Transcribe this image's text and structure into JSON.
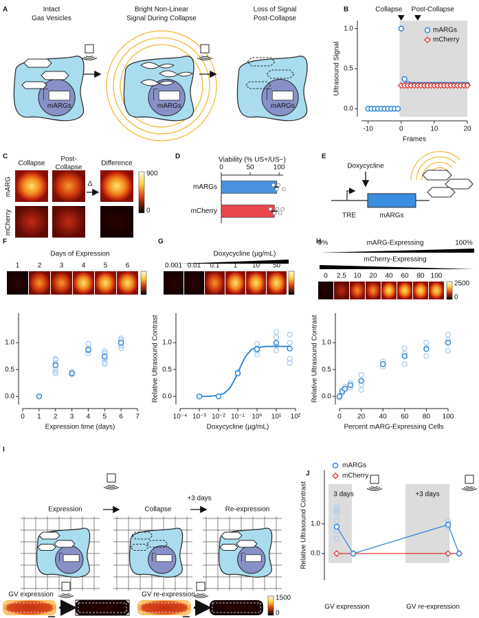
{
  "panel_labels": [
    "A",
    "B",
    "C",
    "D",
    "E",
    "F",
    "G",
    "H",
    "I",
    "J"
  ],
  "panel_a": {
    "steps": [
      [
        "Intact",
        "Gas Vesicles"
      ],
      [
        "Bright Non-Linear",
        "Signal During Collapse"
      ],
      [
        "Loss of Signal",
        "Post-Collapse"
      ]
    ],
    "gene": "mARGs"
  },
  "panel_c": {
    "columns": [
      [
        "Collapse"
      ],
      [
        "Post-",
        "Collapse"
      ],
      [
        "Difference"
      ]
    ],
    "rows": [
      "mARG",
      "mCherry"
    ],
    "operator": "Δ",
    "colorbar": [
      900,
      0
    ]
  },
  "panel_e": {
    "drug": "Doxycycline",
    "promoter": "TRE",
    "gene": "mARGs"
  },
  "panel_i": {
    "steps": [
      "Expression",
      "Collapse",
      "Re-expression"
    ],
    "interval": "+3 days",
    "images": [
      "GV expression",
      "GV re-expression"
    ],
    "colorbar": [
      1500,
      0
    ]
  },
  "chart_data": [
    {
      "type": "scatter",
      "annotations": [
        "Collapse",
        "Post-Collapse"
      ],
      "x_label": "Frames",
      "y_label": "Ultrasound Signal",
      "x": [
        -10,
        -9,
        -8,
        -7,
        -6,
        -5,
        -4,
        -3,
        -2,
        -1,
        0,
        1,
        2,
        3,
        4,
        5,
        6,
        7,
        8,
        9,
        10,
        11,
        12,
        13,
        14,
        15,
        16,
        17,
        18,
        19,
        20
      ],
      "series": [
        {
          "name": "mARGs",
          "color": "#2f86d8",
          "marker": "circle",
          "values": [
            0,
            0,
            0,
            0,
            0,
            0,
            0,
            0,
            0,
            0,
            1.0,
            0.37,
            0.31,
            0.3,
            0.3,
            0.3,
            0.3,
            0.3,
            0.3,
            0.3,
            0.3,
            0.3,
            0.3,
            0.3,
            0.3,
            0.3,
            0.3,
            0.3,
            0.3,
            0.3,
            0.3
          ]
        },
        {
          "name": "mCherry",
          "color": "#e0312f",
          "marker": "diamond",
          "values": [
            null,
            null,
            null,
            null,
            null,
            null,
            null,
            null,
            null,
            null,
            0.29,
            0.29,
            0.29,
            0.29,
            0.29,
            0.29,
            0.29,
            0.29,
            0.29,
            0.29,
            0.29,
            0.29,
            0.29,
            0.29,
            0.29,
            0.29,
            0.29,
            0.29,
            0.29,
            0.29,
            0.29
          ]
        }
      ],
      "xlim": [
        -12,
        20
      ],
      "xticks": [
        -10,
        0,
        10,
        20
      ],
      "ylim": [
        -0.1,
        1.1
      ],
      "yticks": [
        {
          "value": 0,
          "label": "0.0"
        },
        {
          "value": 0.5,
          "label": "0.5"
        },
        {
          "value": 1,
          "label": "1.0"
        }
      ],
      "legend": "upper right"
    },
    {
      "type": "bar",
      "orientation": "horizontal",
      "title": "Viability (% US+/US−)",
      "categories": [
        "mARGs",
        "mCherry"
      ],
      "values": [
        96,
        92
      ],
      "errors": [
        4,
        6
      ],
      "colors": [
        "#4a92e0",
        "#e8474b"
      ],
      "points": [
        [
          90,
          96,
          99,
          108
        ],
        [
          85,
          92,
          97,
          102,
          106
        ]
      ],
      "xlim": [
        0,
        107
      ],
      "xticks": [
        0,
        50,
        100
      ]
    },
    {
      "type": "scatter",
      "title": "Days of Expression",
      "image_labels": [
        1,
        2,
        3,
        4,
        5,
        6
      ],
      "x_label": "Expression time (days)",
      "y_label": "Relative Ultrasound Contrast",
      "x": [
        1,
        2,
        3,
        4,
        5,
        6
      ],
      "values": [
        0,
        0.58,
        0.43,
        0.87,
        0.74,
        1.0
      ],
      "color": "#2f86d8",
      "replicates": {
        "color": "#a9cdf1",
        "x": [
          1,
          1,
          1,
          2,
          2,
          2,
          2,
          2,
          2,
          3,
          3,
          3,
          4,
          4,
          4,
          4,
          5,
          5,
          5,
          5,
          5,
          6,
          6,
          6,
          6,
          6
        ],
        "values": [
          0,
          0,
          0,
          0.7,
          0.68,
          0.6,
          0.5,
          0.46,
          0.43,
          0.46,
          0.43,
          0.41,
          0.98,
          0.9,
          0.85,
          0.8,
          0.84,
          0.8,
          0.7,
          0.63,
          0.6,
          1.08,
          1.05,
          1.0,
          0.95,
          0.9
        ]
      },
      "xlim": [
        0,
        7
      ],
      "xticks": [
        0,
        1,
        2,
        3,
        4,
        5,
        6,
        7
      ],
      "ylim": [
        -0.15,
        1.55
      ],
      "yticks": [
        {
          "value": 0,
          "label": "0.0"
        },
        {
          "value": 0.5,
          "label": "0.5"
        },
        {
          "value": 1,
          "label": "1.0"
        }
      ]
    },
    {
      "type": "scatter",
      "title": "Doxycycline (µg/mL)",
      "image_labels": [
        0.001,
        0.01,
        0.1,
        1,
        10,
        50
      ],
      "x_label": "Doxycycline (µg/mL)",
      "y_label": "Relative Ultrasound Contrast",
      "log_x": true,
      "x": [
        0.001,
        0.01,
        0.1,
        1,
        10,
        50
      ],
      "values": [
        0,
        0,
        0.43,
        0.88,
        1.0,
        0.89
      ],
      "color": "#2f86d8",
      "replicates": {
        "color": "#a9cdf1",
        "x": [
          0.001,
          0.001,
          0.01,
          0.01,
          0.1,
          0.1,
          1,
          1,
          1,
          1,
          10,
          10,
          10,
          10,
          50,
          50,
          50,
          50
        ],
        "values": [
          0,
          0,
          0,
          0,
          0.45,
          0.42,
          0.98,
          0.9,
          0.85,
          0.78,
          1.2,
          1.1,
          0.95,
          0.85,
          1.15,
          1.0,
          0.7,
          0.62
        ]
      },
      "fit": {
        "x": [
          0.001,
          0.003,
          0.01,
          0.02,
          0.04,
          0.07,
          0.1,
          0.15,
          0.25,
          0.5,
          1,
          3,
          10,
          50
        ],
        "values": [
          0,
          0.002,
          0.02,
          0.06,
          0.16,
          0.32,
          0.43,
          0.58,
          0.74,
          0.87,
          0.91,
          0.93,
          0.93,
          0.93
        ]
      },
      "xlim": [
        0.0001,
        100
      ],
      "xticks": [
        {
          "value": 0.0001,
          "label": "10⁻⁴"
        },
        {
          "value": 0.001,
          "label": "10⁻³"
        },
        {
          "value": 0.01,
          "label": "10⁻²"
        },
        {
          "value": 0.1,
          "label": "10⁻¹"
        },
        {
          "value": 1,
          "label": "10⁰"
        },
        {
          "value": 10,
          "label": "10¹"
        },
        {
          "value": 100,
          "label": "10²"
        }
      ],
      "ylim": [
        -0.15,
        1.55
      ],
      "yticks": [
        {
          "value": 0,
          "label": "0.0"
        },
        {
          "value": 0.5,
          "label": "0.5"
        },
        {
          "value": 1,
          "label": "1.0"
        }
      ]
    },
    {
      "type": "scatter",
      "gradient_labels": [
        "0%",
        "mARG-Expressing",
        "100%",
        "mCherry-Expressing"
      ],
      "image_labels": [
        0,
        2.5,
        10,
        20,
        40,
        60,
        80,
        100
      ],
      "colorbar": [
        2500,
        0
      ],
      "x_label": "Percent mARG-Expressing Cells",
      "y_label": "Relative Ultrasound Contrast",
      "x": [
        0,
        2.5,
        5,
        10,
        20,
        40,
        60,
        80,
        100
      ],
      "values": [
        0,
        0.09,
        0.14,
        0.21,
        0.29,
        0.6,
        0.75,
        0.88,
        1.0
      ],
      "color": "#2f86d8",
      "replicates": {
        "color": "#a9cdf1",
        "x": [
          0,
          0,
          2.5,
          2.5,
          5,
          10,
          10,
          20,
          20,
          20,
          40,
          40,
          60,
          60,
          60,
          80,
          80,
          80,
          100,
          100,
          100
        ],
        "values": [
          0,
          -0.02,
          0.12,
          0.06,
          0.18,
          0.25,
          0.16,
          0.4,
          0.22,
          0.12,
          0.65,
          0.55,
          0.9,
          0.8,
          0.6,
          1.0,
          0.9,
          0.75,
          1.15,
          1.05,
          0.85
        ]
      },
      "xlim": [
        0,
        100
      ],
      "xticks": [
        0,
        20,
        40,
        60,
        80,
        100
      ],
      "ylim": [
        -0.15,
        1.55
      ],
      "yticks": [
        {
          "value": 0,
          "label": "0.0"
        },
        {
          "value": 0.5,
          "label": "0.5"
        },
        {
          "value": 1,
          "label": "1.0"
        }
      ]
    },
    {
      "type": "line",
      "y_label": "Relative Ultrasound Contrast",
      "categories": [
        null,
        null,
        null,
        null
      ],
      "series": [
        {
          "name": "mARGs",
          "color": "#2f86d8",
          "marker": "circle",
          "values": [
            0.9,
            0,
            0.97,
            0
          ]
        },
        {
          "name": "mCherry",
          "color": "#e0312f",
          "marker": "diamond",
          "values": [
            0,
            0,
            0,
            0
          ]
        }
      ],
      "replicates": {
        "color": "#a9cdf1",
        "values": [
          [
            1.55,
            1.45,
            1.35,
            1.1,
            0.75,
            0.5
          ],
          [],
          [
            1.1,
            1.0,
            0.9
          ],
          []
        ]
      },
      "annotations": [
        "3 days",
        "+3 days"
      ],
      "group_labels": [
        "GV expression",
        "GV re-expression"
      ],
      "ylim": [
        -0.9,
        2.8
      ],
      "yticks": [
        {
          "value": 0,
          "label": "0.0"
        },
        {
          "value": 1,
          "label": "1.0"
        }
      ],
      "legend": "upper left"
    }
  ]
}
